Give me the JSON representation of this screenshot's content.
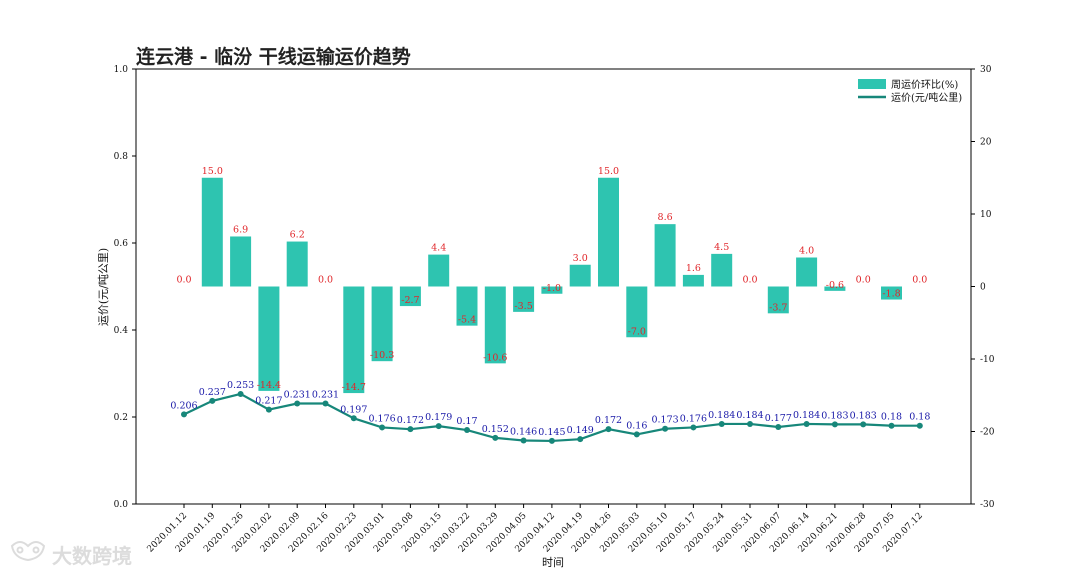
{
  "chart_data": {
    "type": "bar+line",
    "title": "连云港 - 临汾 干线运输运价趋势",
    "xlabel": "时间",
    "ylabel": "运价(元/吨公里)",
    "ylim": [
      0,
      1.0
    ],
    "y_ticks": [
      "0.0",
      "0.2",
      "0.4",
      "0.6",
      "0.8",
      "1.0"
    ],
    "y2lim": [
      -30,
      30
    ],
    "y2_ticks": [
      "-30",
      "-20",
      "-10",
      "0",
      "10",
      "20",
      "30"
    ],
    "categories": [
      "2020.01.12",
      "2020.01.19",
      "2020.01.26",
      "2020.02.02",
      "2020.02.09",
      "2020.02.16",
      "2020.02.23",
      "2020.03.01",
      "2020.03.08",
      "2020.03.15",
      "2020.03.22",
      "2020.03.29",
      "2020.04.05",
      "2020.04.12",
      "2020.04.19",
      "2020.04.26",
      "2020.05.03",
      "2020.05.10",
      "2020.05.17",
      "2020.05.24",
      "2020.05.31",
      "2020.06.07",
      "2020.06.14",
      "2020.06.21",
      "2020.06.28",
      "2020.07.05",
      "2020.07.12"
    ],
    "series": [
      {
        "name": "周运价环比(%)",
        "type": "bar",
        "axis": "right",
        "color": "#2ec4b0",
        "values": [
          0.0,
          15.0,
          6.9,
          -14.4,
          6.2,
          0.0,
          -14.7,
          -10.3,
          -2.7,
          4.4,
          -5.4,
          -10.6,
          -3.5,
          -1.0,
          3.0,
          15.0,
          -7.0,
          8.6,
          1.6,
          4.5,
          0.0,
          -3.7,
          4.0,
          -0.6,
          0.0,
          -1.8,
          0.0
        ],
        "labels": [
          "0.0",
          "15.0",
          "6.9",
          "-14.4",
          "6.2",
          "0.0",
          "-14.7",
          "-10.3",
          "-2.7",
          "4.4",
          "-5.4",
          "-10.6",
          "-3.5",
          "-1.0",
          "3.0",
          "15.0",
          "-7.0",
          "8.6",
          "1.6",
          "4.5",
          "0.0",
          "-3.7",
          "4.0",
          "-0.6",
          "0.0",
          "-1.8",
          "0.0"
        ]
      },
      {
        "name": "运价(元/吨公里)",
        "type": "line",
        "axis": "left",
        "color": "#17877a",
        "values": [
          0.206,
          0.237,
          0.253,
          0.217,
          0.231,
          0.231,
          0.197,
          0.176,
          0.172,
          0.179,
          0.17,
          0.152,
          0.146,
          0.145,
          0.149,
          0.172,
          0.16,
          0.173,
          0.176,
          0.184,
          0.184,
          0.177,
          0.184,
          0.183,
          0.183,
          0.18,
          0.18
        ],
        "labels": [
          "0.206",
          "0.237",
          "0.253",
          "0.217",
          "0.231",
          "0.231",
          "0.197",
          "0.176",
          "0.172",
          "0.179",
          "0.17",
          "0.152",
          "0.146",
          "0.145",
          "0.149",
          "0.172",
          "0.16",
          "0.173",
          "0.176",
          "0.184",
          "0.184",
          "0.177",
          "0.184",
          "0.183",
          "0.183",
          "0.18",
          "0.18"
        ]
      }
    ],
    "legend": "top-right",
    "grid": false
  },
  "watermark": "大数跨境",
  "label_color_bar": "#e0262a",
  "label_color_line": "#1a1aa8"
}
